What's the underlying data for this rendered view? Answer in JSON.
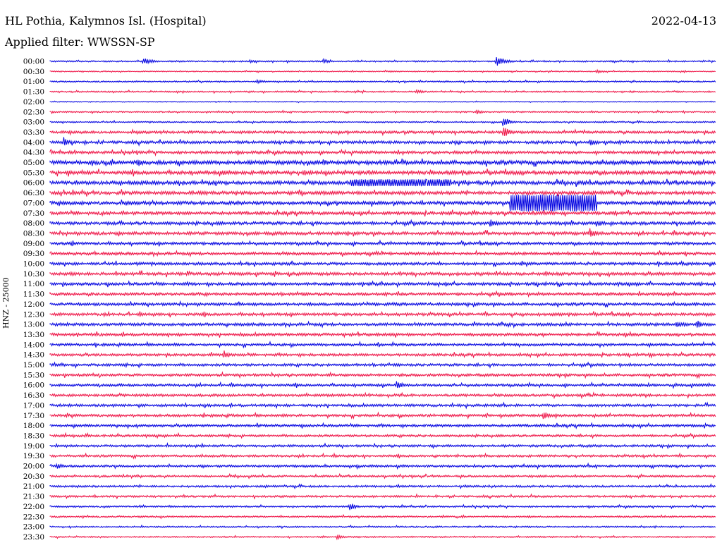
{
  "header": {
    "station": "HL Pothia, Kalymnos Isl. (Hospital)",
    "date": "2022-04-13",
    "filter": "Applied filter: WWSSN-SP"
  },
  "chart_data": {
    "type": "line",
    "subtype": "helicorder",
    "title": "HL Pothia, Kalymnos Isl. (Hospital)",
    "subtitle": "Applied filter: WWSSN-SP",
    "date": "2022-04-13",
    "ylabel": "HNZ - 25000",
    "grid": false,
    "line_interval_minutes": 30,
    "row_labels": [
      "00:00",
      "00:30",
      "01:00",
      "01:30",
      "02:00",
      "02:30",
      "03:00",
      "03:30",
      "04:00",
      "04:30",
      "05:00",
      "05:30",
      "06:00",
      "06:30",
      "07:00",
      "07:30",
      "08:00",
      "08:30",
      "09:00",
      "09:30",
      "10:00",
      "10:30",
      "11:00",
      "11:30",
      "12:00",
      "12:30",
      "13:00",
      "13:30",
      "14:00",
      "14:30",
      "15:00",
      "15:30",
      "16:00",
      "16:30",
      "17:00",
      "17:30",
      "18:00",
      "18:30",
      "19:00",
      "19:30",
      "20:00",
      "20:30",
      "21:00",
      "21:30",
      "22:00",
      "22:30",
      "23:00",
      "23:30"
    ],
    "colors": [
      "#0000e0",
      "#ee1144"
    ],
    "noise_level": [
      0.5,
      0.4,
      0.5,
      0.5,
      0.3,
      0.5,
      0.5,
      0.9,
      1.0,
      1.0,
      1.4,
      1.3,
      1.3,
      1.2,
      1.2,
      1.1,
      1.1,
      1.1,
      1.0,
      1.0,
      1.0,
      1.1,
      1.0,
      1.0,
      1.0,
      1.0,
      1.0,
      1.0,
      0.9,
      0.9,
      0.9,
      0.9,
      0.9,
      0.9,
      0.9,
      0.9,
      0.9,
      0.8,
      0.8,
      0.8,
      0.8,
      0.7,
      0.7,
      0.7,
      0.6,
      0.6,
      0.5,
      0.5
    ],
    "events": [
      {
        "row": 0,
        "t": 0.14,
        "amp": 5,
        "dur": 0.03
      },
      {
        "row": 0,
        "t": 0.3,
        "amp": 3,
        "dur": 0.03
      },
      {
        "row": 0,
        "t": 0.41,
        "amp": 4,
        "dur": 0.02
      },
      {
        "row": 0,
        "t": 0.67,
        "amp": 7,
        "dur": 0.03
      },
      {
        "row": 1,
        "t": 0.51,
        "amp": 2,
        "dur": 0.02
      },
      {
        "row": 1,
        "t": 0.82,
        "amp": 3,
        "dur": 0.03
      },
      {
        "row": 2,
        "t": 0.31,
        "amp": 3,
        "dur": 0.03
      },
      {
        "row": 3,
        "t": 0.55,
        "amp": 3,
        "dur": 0.03
      },
      {
        "row": 5,
        "t": 0.64,
        "amp": 4,
        "dur": 0.02
      },
      {
        "row": 6,
        "t": 0.68,
        "amp": 9,
        "dur": 0.02
      },
      {
        "row": 7,
        "t": 0.68,
        "amp": 10,
        "dur": 0.02
      },
      {
        "row": 8,
        "t": 0.02,
        "amp": 8,
        "dur": 0.02
      },
      {
        "row": 8,
        "t": 0.81,
        "amp": 6,
        "dur": 0.02
      },
      {
        "row": 10,
        "t": 0.13,
        "amp": 8,
        "dur": 0.02
      },
      {
        "row": 10,
        "t": 0.41,
        "amp": 5,
        "dur": 0.02
      },
      {
        "row": 11,
        "t": 0.26,
        "amp": 5,
        "dur": 0.02
      },
      {
        "row": 11,
        "t": 0.38,
        "amp": 5,
        "dur": 0.02
      },
      {
        "row": 11,
        "t": 0.57,
        "amp": 5,
        "dur": 0.02
      },
      {
        "row": 12,
        "t": 0.45,
        "amp": 5,
        "dur": 0.15
      },
      {
        "row": 14,
        "t": 0.69,
        "amp": 12,
        "dur": 0.13
      },
      {
        "row": 14,
        "t": 0.91,
        "amp": 4,
        "dur": 0.03
      },
      {
        "row": 16,
        "t": 0.66,
        "amp": 6,
        "dur": 0.03
      },
      {
        "row": 16,
        "t": 0.82,
        "amp": 5,
        "dur": 0.03
      },
      {
        "row": 17,
        "t": 0.81,
        "amp": 10,
        "dur": 0.02
      },
      {
        "row": 26,
        "t": 0.94,
        "amp": 6,
        "dur": 0.03
      },
      {
        "row": 26,
        "t": 0.97,
        "amp": 7,
        "dur": 0.02
      },
      {
        "row": 29,
        "t": 0.26,
        "amp": 7,
        "dur": 0.02
      },
      {
        "row": 32,
        "t": 0.52,
        "amp": 7,
        "dur": 0.02
      },
      {
        "row": 35,
        "t": 0.74,
        "amp": 6,
        "dur": 0.03
      },
      {
        "row": 40,
        "t": 0.01,
        "amp": 6,
        "dur": 0.02
      },
      {
        "row": 44,
        "t": 0.45,
        "amp": 7,
        "dur": 0.02
      },
      {
        "row": 47,
        "t": 0.43,
        "amp": 4,
        "dur": 0.02
      }
    ]
  }
}
